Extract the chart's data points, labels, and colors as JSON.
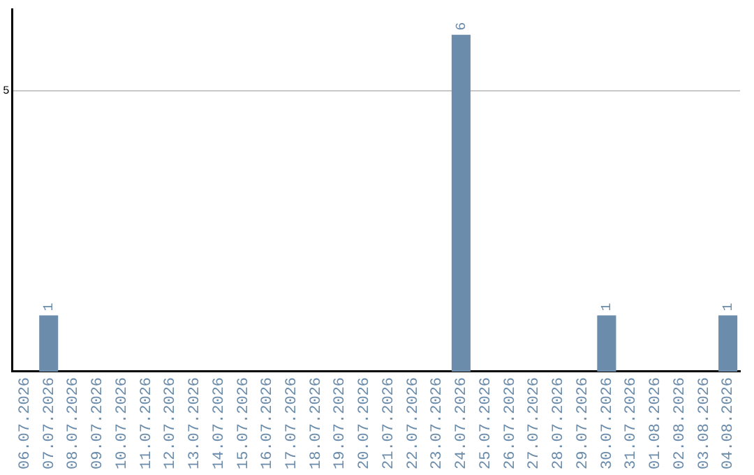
{
  "chart_data": {
    "type": "bar",
    "categories": [
      "06.07.2026",
      "07.07.2026",
      "08.07.2026",
      "09.07.2026",
      "10.07.2026",
      "11.07.2026",
      "12.07.2026",
      "13.07.2026",
      "14.07.2026",
      "15.07.2026",
      "16.07.2026",
      "17.07.2026",
      "18.07.2026",
      "19.07.2026",
      "20.07.2026",
      "21.07.2026",
      "22.07.2026",
      "23.07.2026",
      "24.07.2026",
      "25.07.2026",
      "26.07.2026",
      "27.07.2026",
      "28.07.2026",
      "29.07.2026",
      "30.07.2026",
      "31.07.2026",
      "01.08.2026",
      "02.08.2026",
      "03.08.2026",
      "04.08.2026"
    ],
    "values": [
      0,
      1,
      0,
      0,
      0,
      0,
      0,
      0,
      0,
      0,
      0,
      0,
      0,
      0,
      0,
      0,
      0,
      0,
      6,
      0,
      0,
      0,
      0,
      0,
      1,
      0,
      0,
      0,
      0,
      1
    ],
    "value_labels": [
      null,
      "1",
      null,
      null,
      null,
      null,
      null,
      null,
      null,
      null,
      null,
      null,
      null,
      null,
      null,
      null,
      null,
      null,
      "6",
      null,
      null,
      null,
      null,
      null,
      "1",
      null,
      null,
      null,
      null,
      "1"
    ],
    "color": "#6b8cab",
    "ylim": [
      0,
      6.45
    ],
    "yticks": [
      5
    ],
    "grid": "y",
    "legend": false
  }
}
